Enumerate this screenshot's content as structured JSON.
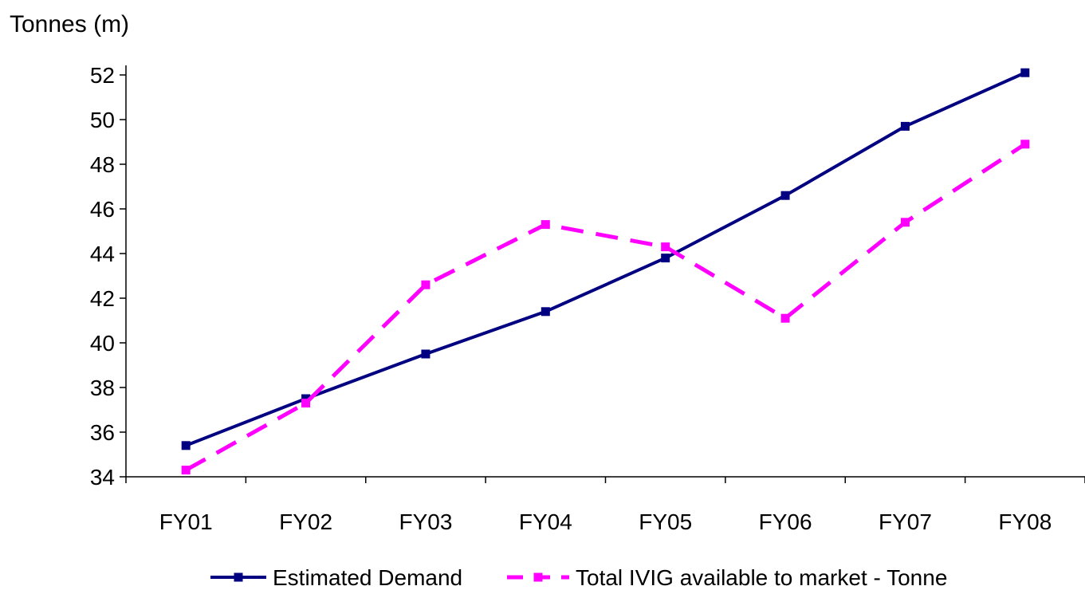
{
  "chart_data": {
    "type": "line",
    "title": "",
    "xlabel": "",
    "ylabel": "Tonnes (m)",
    "categories": [
      "FY01",
      "FY02",
      "FY03",
      "FY04",
      "FY05",
      "FY06",
      "FY07",
      "FY08"
    ],
    "ylim": [
      34,
      52
    ],
    "yticks": [
      "34",
      "36",
      "38",
      "40",
      "42",
      "44",
      "46",
      "48",
      "50",
      "52"
    ],
    "grid": false,
    "legend_position": "bottom",
    "series": [
      {
        "name": "Estimated Demand",
        "values": [
          35.4,
          37.5,
          39.5,
          41.4,
          43.8,
          46.6,
          49.7,
          52.1
        ],
        "color": "#000080",
        "style": "solid",
        "marker": "square"
      },
      {
        "name": "Total IVIG available to market - Tonne",
        "values": [
          34.3,
          37.3,
          42.6,
          45.3,
          44.3,
          41.1,
          45.4,
          48.9
        ],
        "color": "#ff00ff",
        "style": "dashed",
        "marker": "square"
      }
    ]
  }
}
